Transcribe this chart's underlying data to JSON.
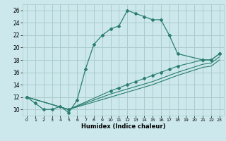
{
  "title": "",
  "xlabel": "Humidex (Indice chaleur)",
  "ylabel": "",
  "bg_color": "#cce8ec",
  "grid_color": "#aacccc",
  "line_color": "#2a7d6e",
  "xlim": [
    -0.5,
    23.5
  ],
  "ylim": [
    9.0,
    27.0
  ],
  "xticks": [
    0,
    1,
    2,
    3,
    4,
    5,
    6,
    7,
    8,
    9,
    10,
    11,
    12,
    13,
    14,
    15,
    16,
    17,
    18,
    19,
    20,
    21,
    22,
    23
  ],
  "yticks": [
    10,
    12,
    14,
    16,
    18,
    20,
    22,
    24,
    26
  ],
  "curve1_x": [
    0,
    1,
    2,
    3,
    4,
    5,
    6,
    7,
    8,
    9,
    10,
    11,
    12,
    13,
    14,
    15,
    16,
    17,
    18,
    21,
    22,
    23
  ],
  "curve1_y": [
    12,
    11,
    10,
    10,
    10.5,
    9.5,
    11.5,
    16.5,
    20.5,
    22,
    23,
    23.5,
    26,
    25.5,
    25,
    24.5,
    24.5,
    22,
    19,
    18,
    18,
    19
  ],
  "curve2_x": [
    0,
    5,
    10,
    11,
    12,
    13,
    14,
    15,
    16,
    17,
    18,
    21,
    22,
    23
  ],
  "curve2_y": [
    12,
    10,
    13,
    13.5,
    14,
    14.5,
    15,
    15.5,
    16,
    16.5,
    17,
    18,
    18,
    19
  ],
  "curve3_x": [
    0,
    5,
    10,
    15,
    18,
    21,
    22,
    23
  ],
  "curve3_y": [
    12,
    10,
    12.5,
    14.5,
    16.0,
    17.3,
    17.5,
    18.5
  ],
  "curve4_x": [
    0,
    5,
    10,
    15,
    18,
    21,
    22,
    23
  ],
  "curve4_y": [
    12,
    10,
    12.0,
    14.0,
    15.5,
    16.8,
    17.0,
    18.0
  ]
}
